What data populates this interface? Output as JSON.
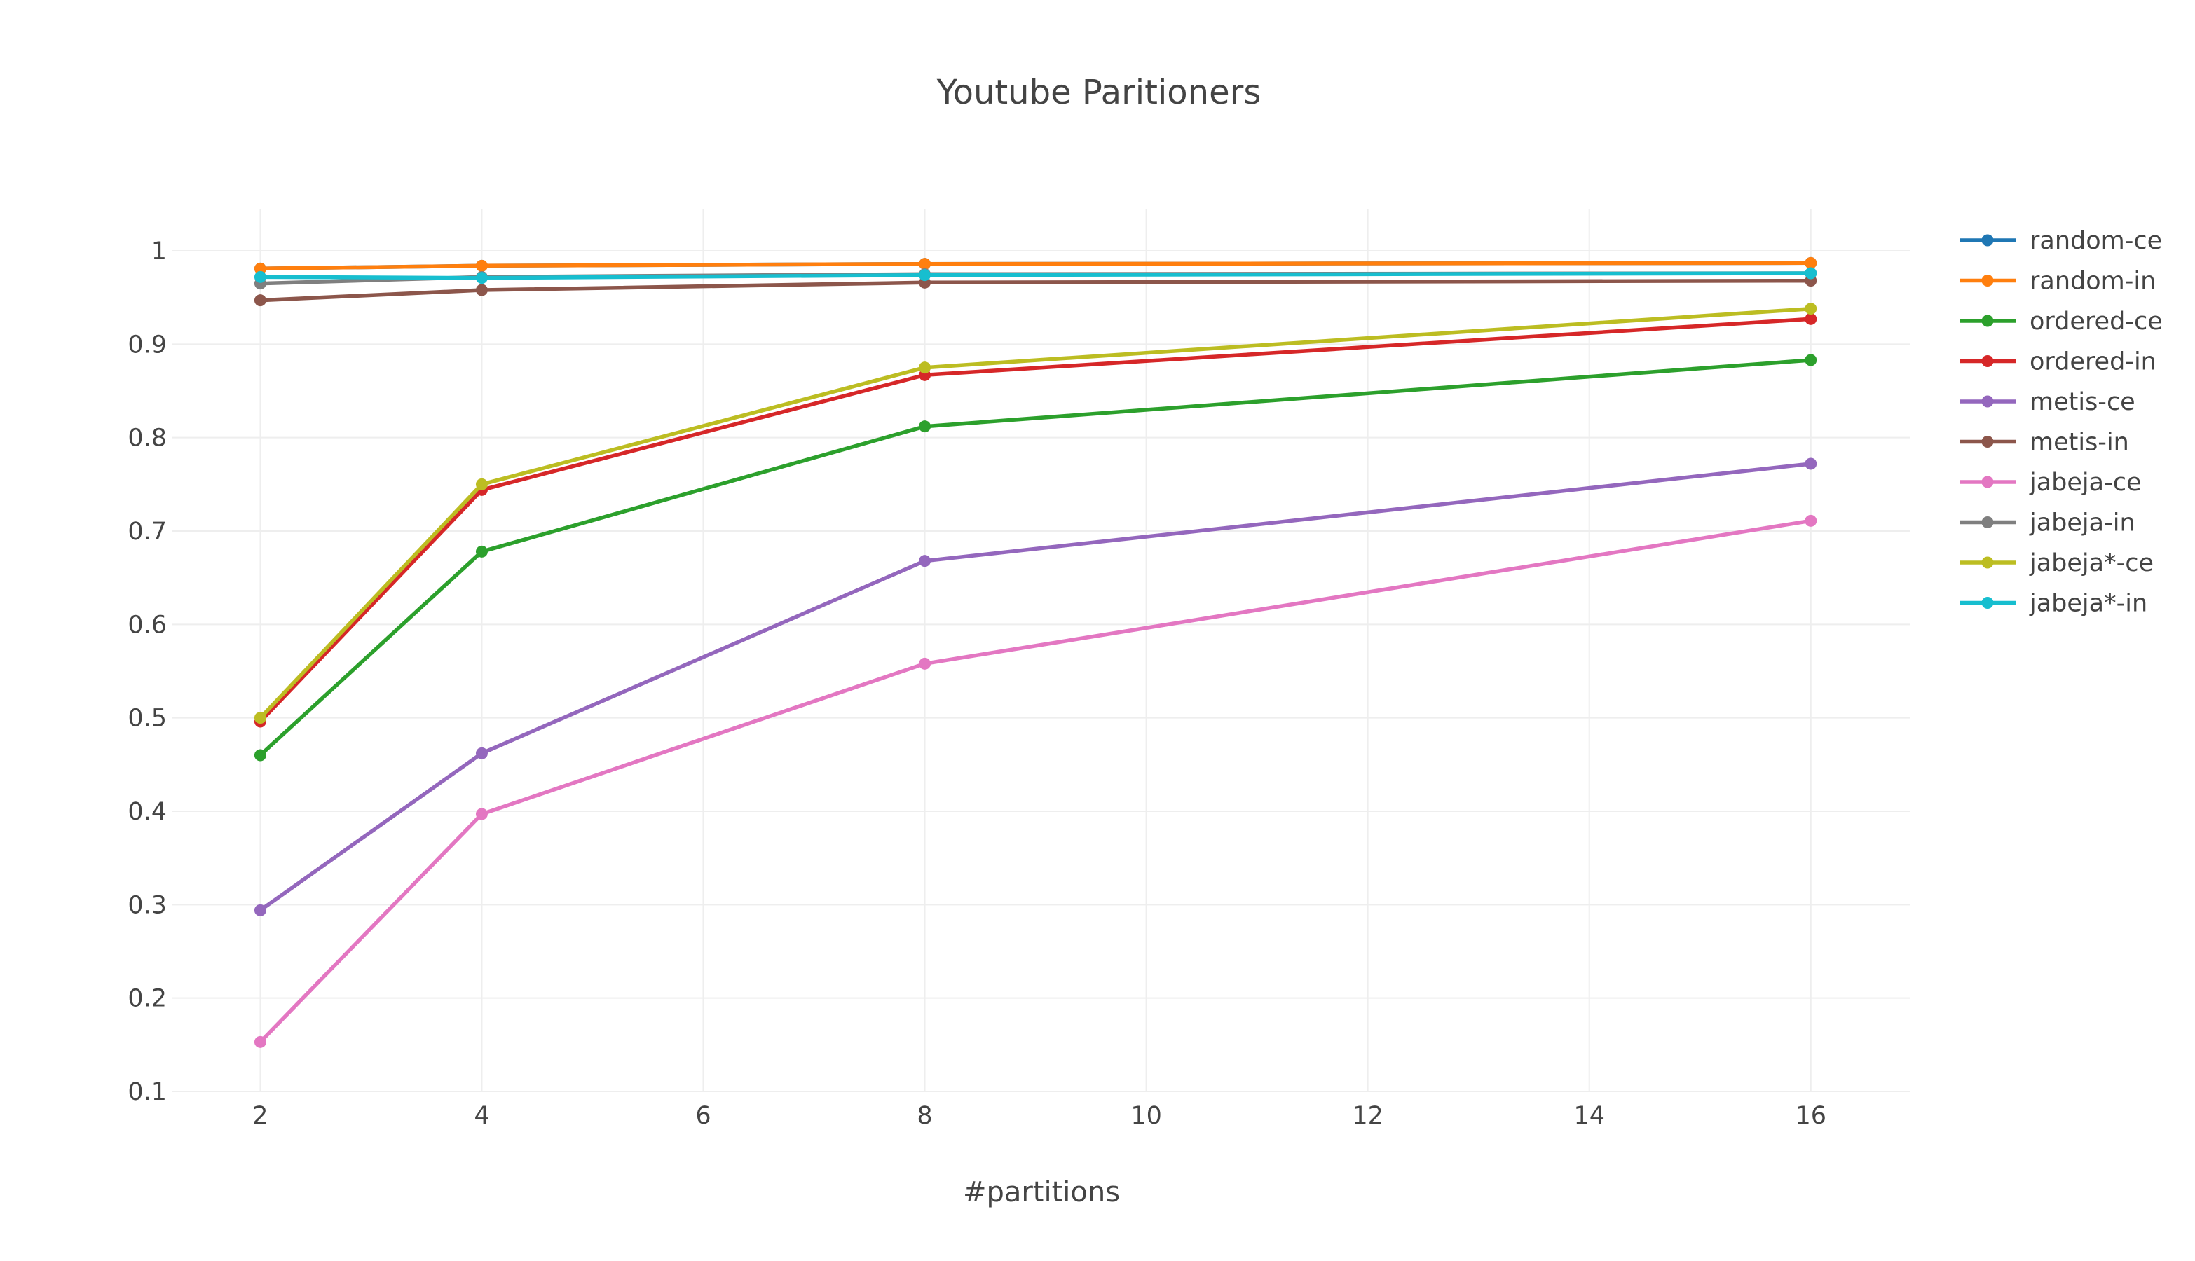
{
  "chart_data": {
    "type": "line",
    "title": "Youtube Paritioners",
    "xlabel": "#partitions",
    "ylabel": "",
    "xlim": [
      1.2,
      16.9
    ],
    "ylim": [
      0.1,
      1.045
    ],
    "x_ticks": [
      2,
      4,
      6,
      8,
      10,
      12,
      14,
      16
    ],
    "y_ticks": [
      0.1,
      0.2,
      0.3,
      0.4,
      0.5,
      0.6,
      0.7,
      0.8,
      0.9,
      1
    ],
    "x_tick_labels": [
      "2",
      "4",
      "6",
      "8",
      "10",
      "12",
      "14",
      "16"
    ],
    "y_tick_labels": [
      "0.1",
      "0.2",
      "0.3",
      "0.4",
      "0.5",
      "0.6",
      "0.7",
      "0.8",
      "0.9",
      "1"
    ],
    "grid": true,
    "legend_position": "right",
    "x": [
      2,
      4,
      8,
      16
    ],
    "series": [
      {
        "name": "random-ce",
        "color": "#1f77b4",
        "values": [
          0.981,
          0.984,
          0.986,
          0.987
        ]
      },
      {
        "name": "random-in",
        "color": "#ff7f0e",
        "values": [
          0.981,
          0.984,
          0.986,
          0.987
        ]
      },
      {
        "name": "ordered-ce",
        "color": "#2ca02c",
        "values": [
          0.46,
          0.678,
          0.812,
          0.883
        ]
      },
      {
        "name": "ordered-in",
        "color": "#d62728",
        "values": [
          0.496,
          0.744,
          0.867,
          0.927
        ]
      },
      {
        "name": "metis-ce",
        "color": "#9467bd",
        "values": [
          0.294,
          0.462,
          0.668,
          0.772
        ]
      },
      {
        "name": "metis-in",
        "color": "#8c564b",
        "values": [
          0.947,
          0.958,
          0.966,
          0.968
        ]
      },
      {
        "name": "jabeja-ce",
        "color": "#e377c2",
        "values": [
          0.153,
          0.397,
          0.558,
          0.711
        ]
      },
      {
        "name": "jabeja-in",
        "color": "#7f7f7f",
        "values": [
          0.965,
          0.972,
          0.975,
          0.976
        ]
      },
      {
        "name": "jabeja*-ce",
        "color": "#bcbd22",
        "values": [
          0.5,
          0.75,
          0.875,
          0.938
        ]
      },
      {
        "name": "jabeja*-in",
        "color": "#17becf",
        "values": [
          0.972,
          0.971,
          0.974,
          0.976
        ]
      }
    ]
  }
}
